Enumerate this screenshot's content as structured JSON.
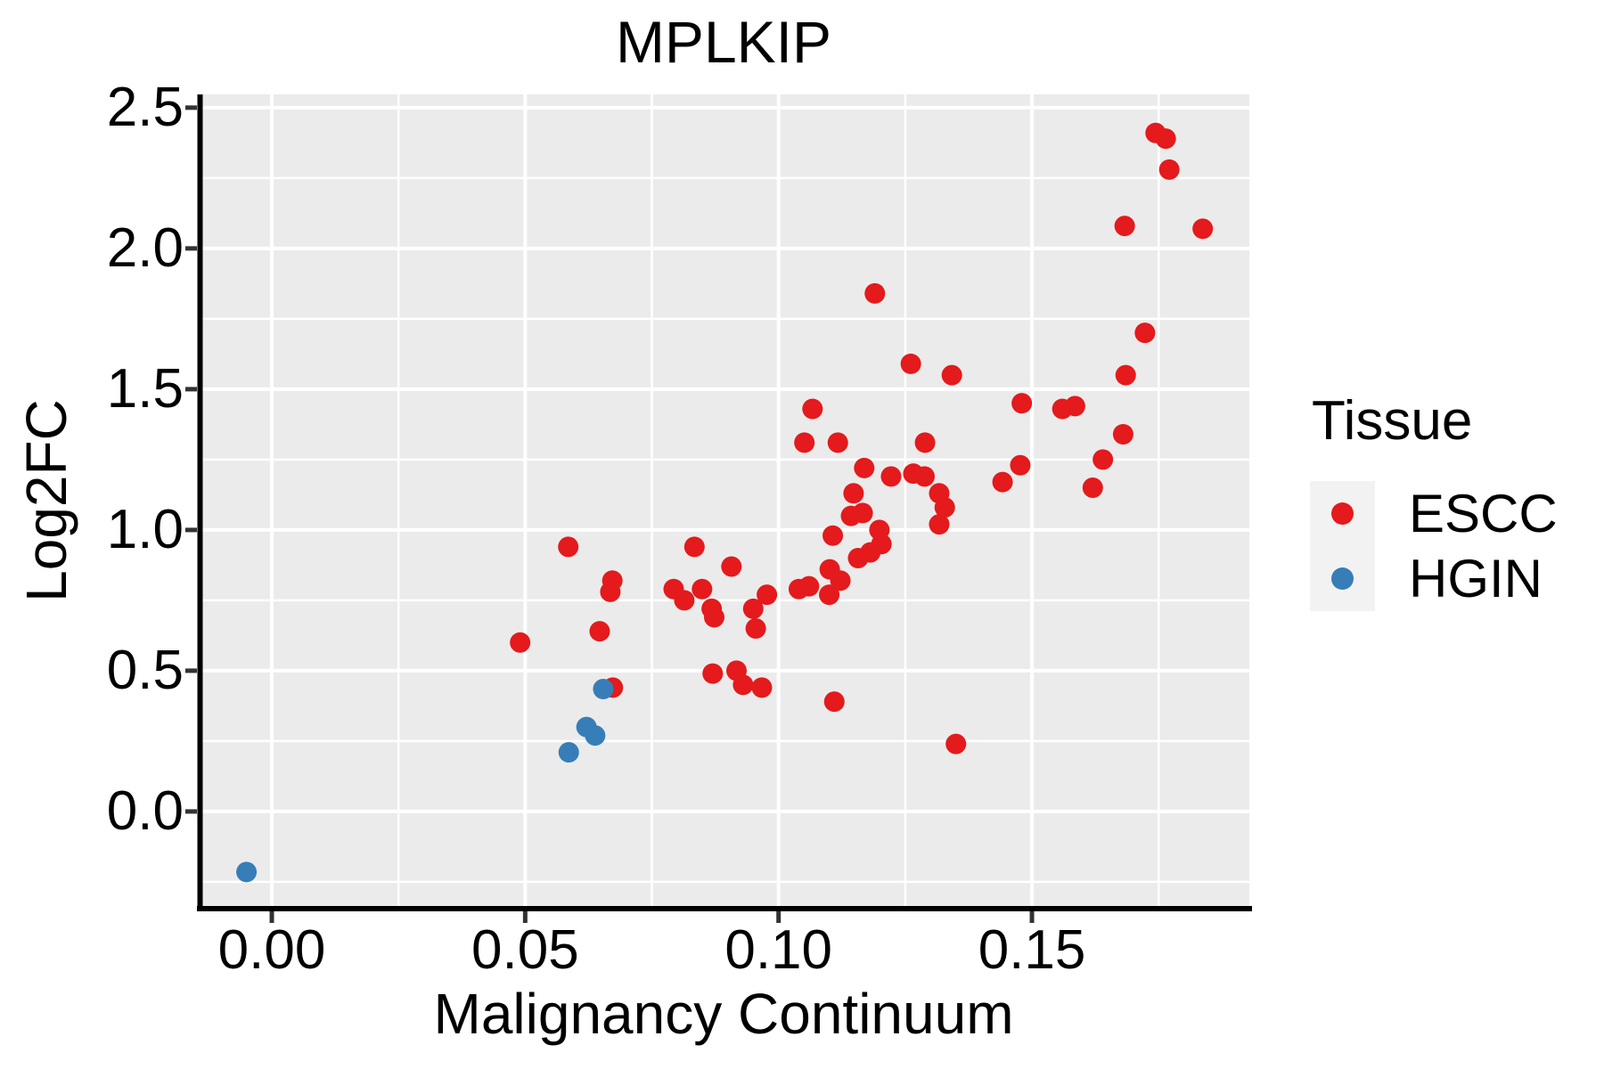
{
  "title": "MPLKIP",
  "axes": {
    "xlabel": "Malignancy Continuum",
    "ylabel": "Log2FC",
    "x_tick_labels": [
      "0.00",
      "0.05",
      "0.10",
      "0.15"
    ],
    "y_tick_labels": [
      "0.0",
      "0.5",
      "1.0",
      "1.5",
      "2.0",
      "2.5"
    ]
  },
  "legend": {
    "title": "Tissue",
    "entries": [
      {
        "label": "ESCC",
        "color": "#E41A1C"
      },
      {
        "label": "HGIN",
        "color": "#377EB8"
      }
    ]
  },
  "colors": {
    "panel_background": "#EBEBEB",
    "gridline": "#FFFFFF",
    "axis_line": "#000000",
    "tick_mark": "#333333",
    "escc": "#E41A1C",
    "hgin": "#377EB8",
    "legend_key_background": "#F2F2F2"
  },
  "chart_data": {
    "type": "scatter",
    "title": "MPLKIP",
    "xlabel": "Malignancy Continuum",
    "ylabel": "Log2FC",
    "xlim": [
      -0.0146,
      0.1929
    ],
    "ylim": [
      -0.342,
      2.547
    ],
    "x_major_ticks": [
      0.0,
      0.05,
      0.1,
      0.15
    ],
    "y_major_ticks": [
      0.0,
      0.5,
      1.0,
      1.5,
      2.0,
      2.5
    ],
    "x_minor_ticks": [
      0.025,
      0.075,
      0.125,
      0.175
    ],
    "y_minor_ticks": [
      -0.25,
      0.25,
      0.75,
      1.25,
      1.75,
      2.25
    ],
    "grid": true,
    "legend_position": "right",
    "point_radius_px": 11.5,
    "series": [
      {
        "name": "ESCC",
        "color": "#E41A1C",
        "points": [
          [
            0.049,
            0.6
          ],
          [
            0.0585,
            0.94
          ],
          [
            0.0672,
            0.82
          ],
          [
            0.0668,
            0.78
          ],
          [
            0.0647,
            0.64
          ],
          [
            0.0673,
            0.44
          ],
          [
            0.0793,
            0.79
          ],
          [
            0.0814,
            0.75
          ],
          [
            0.0834,
            0.94
          ],
          [
            0.0849,
            0.79
          ],
          [
            0.0868,
            0.72
          ],
          [
            0.0873,
            0.69
          ],
          [
            0.087,
            0.49
          ],
          [
            0.0907,
            0.87
          ],
          [
            0.0917,
            0.5
          ],
          [
            0.093,
            0.45
          ],
          [
            0.095,
            0.72
          ],
          [
            0.0955,
            0.65
          ],
          [
            0.0967,
            0.44
          ],
          [
            0.0977,
            0.77
          ],
          [
            0.104,
            0.79
          ],
          [
            0.106,
            0.8
          ],
          [
            0.1051,
            1.31
          ],
          [
            0.1067,
            1.43
          ],
          [
            0.1101,
            0.86
          ],
          [
            0.1107,
            0.98
          ],
          [
            0.111,
            0.39
          ],
          [
            0.11,
            0.77
          ],
          [
            0.1117,
            1.31
          ],
          [
            0.1122,
            0.82
          ],
          [
            0.1143,
            1.05
          ],
          [
            0.1148,
            1.13
          ],
          [
            0.1157,
            0.9
          ],
          [
            0.1166,
            1.06
          ],
          [
            0.1169,
            1.22
          ],
          [
            0.1181,
            0.92
          ],
          [
            0.119,
            1.84
          ],
          [
            0.1199,
            1.0
          ],
          [
            0.1203,
            0.95
          ],
          [
            0.1222,
            1.19
          ],
          [
            0.1261,
            1.59
          ],
          [
            0.1266,
            1.2
          ],
          [
            0.1288,
            1.19
          ],
          [
            0.1289,
            1.31
          ],
          [
            0.1317,
            1.13
          ],
          [
            0.1328,
            1.08
          ],
          [
            0.1317,
            1.02
          ],
          [
            0.1342,
            1.55
          ],
          [
            0.135,
            0.24
          ],
          [
            0.1442,
            1.17
          ],
          [
            0.1477,
            1.23
          ],
          [
            0.148,
            1.45
          ],
          [
            0.156,
            1.43
          ],
          [
            0.1585,
            1.44
          ],
          [
            0.162,
            1.15
          ],
          [
            0.164,
            1.25
          ],
          [
            0.168,
            1.34
          ],
          [
            0.1683,
            2.08
          ],
          [
            0.1685,
            1.55
          ],
          [
            0.1723,
            1.7
          ],
          [
            0.1744,
            2.41
          ],
          [
            0.1764,
            2.39
          ],
          [
            0.1771,
            2.28
          ],
          [
            0.1837,
            2.07
          ]
        ]
      },
      {
        "name": "HGIN",
        "color": "#377EB8",
        "points": [
          [
            -0.005,
            -0.215
          ],
          [
            0.0586,
            0.21
          ],
          [
            0.0621,
            0.3
          ],
          [
            0.0638,
            0.27
          ],
          [
            0.0654,
            0.435
          ]
        ]
      }
    ]
  }
}
